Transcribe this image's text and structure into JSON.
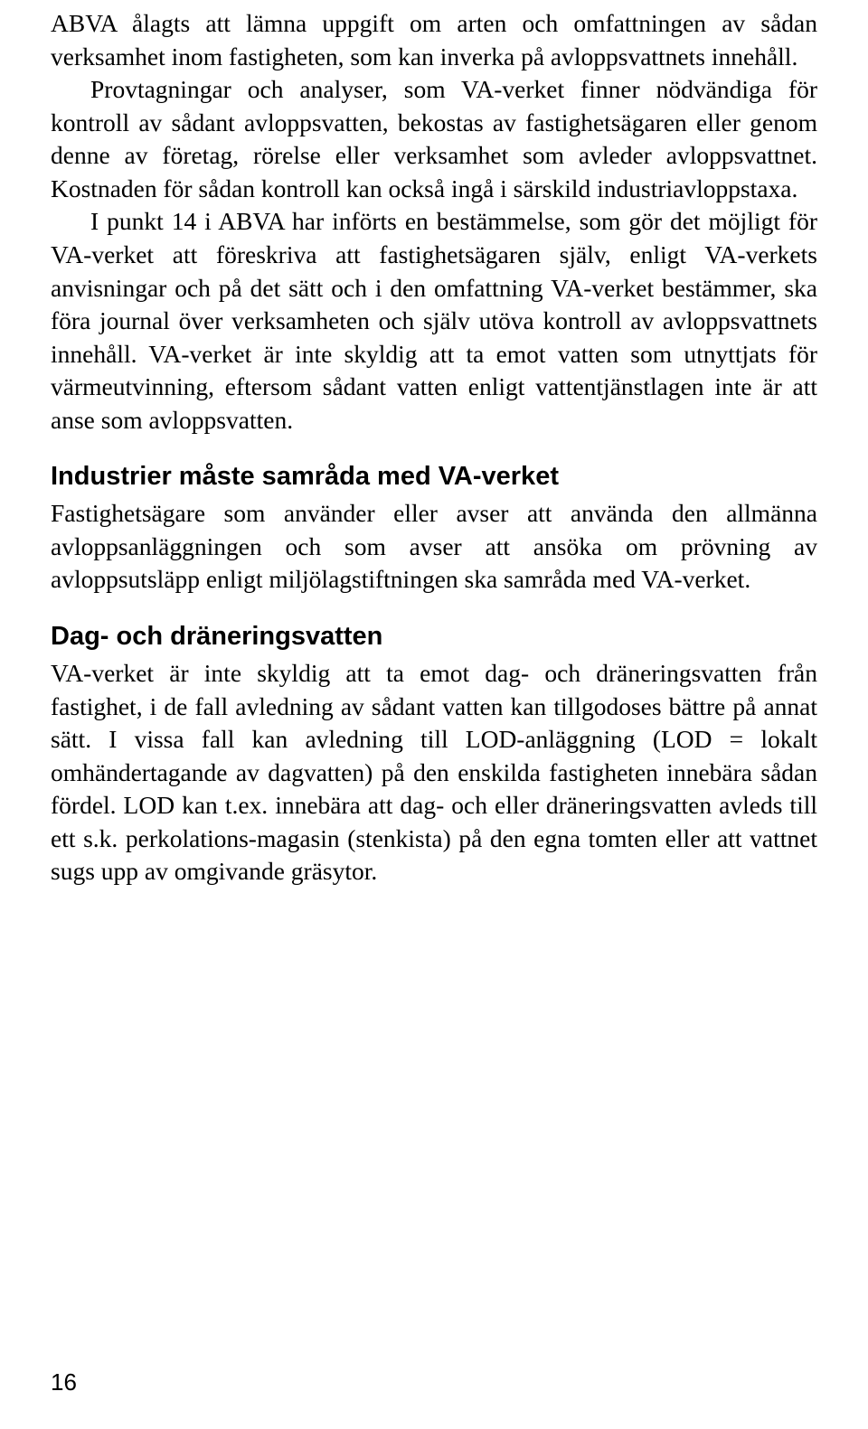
{
  "paragraphs": {
    "p1": "ABVA ålagts att lämna uppgift om arten och omfattningen av sådan verksamhet inom fastigheten, som kan inverka på avloppsvattnets innehåll.",
    "p2": "Provtagningar och analyser, som VA-verket finner nödvändiga för kontroll av sådant avloppsvatten, bekostas av fastighetsägaren eller genom denne av företag, rörelse eller verksamhet som avleder avloppsvattnet. Kostnaden för sådan kontroll kan också ingå i särskild industriavloppstaxa.",
    "p3": "I punkt 14 i ABVA har införts en bestämmelse, som gör det möjligt för VA-verket att föreskriva att fastighetsägaren själv, enligt VA-verkets anvisningar och på det sätt och i den omfattning VA-verket bestämmer, ska föra journal över verksamheten och själv utöva kontroll av avloppsvattnets innehåll. VA-verket är inte skyldig att ta emot vatten som utnyttjats för värmeutvinning, eftersom sådant vatten enligt vattentjänstlagen inte är att anse som avloppsvatten."
  },
  "sections": {
    "s1": {
      "heading": "Industrier måste samråda med VA-verket",
      "body": "Fastighetsägare som använder eller avser att använda den allmänna avloppsanläggningen och som avser att ansöka om prövning av avloppsutsläpp enligt miljölagstiftningen ska samråda med VA-verket."
    },
    "s2": {
      "heading": "Dag- och dräneringsvatten",
      "body": "VA-verket är inte skyldig att ta emot dag- och dräneringsvatten från fastighet, i de fall avledning av sådant vatten kan tillgodoses bättre på annat sätt. I vissa fall kan avledning till LOD-anläggning (LOD = lokalt omhändertagande av dagvatten) på den enskilda fastigheten innebära sådan fördel. LOD kan t.ex. innebära att dag- och eller dräneringsvatten avleds till ett s.k. perkolations-magasin (stenkista) på den egna tomten eller att vattnet sugs upp av omgivande gräsytor."
    }
  },
  "page_number": "16"
}
